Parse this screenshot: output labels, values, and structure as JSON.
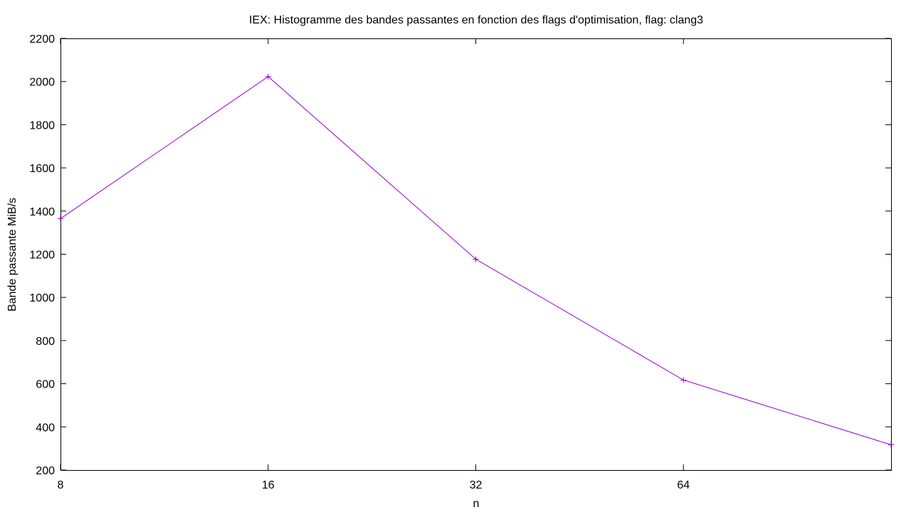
{
  "chart_data": {
    "type": "line",
    "title": "IEX: Histogramme des bandes passantes en fonction des flags d'optimisation, flag: clang3",
    "xlabel": "n",
    "ylabel": "Bande passante MiB/s",
    "x_scale": "log2",
    "x_ticks": [
      "8",
      "16",
      "32",
      "64"
    ],
    "xlim": [
      8,
      128
    ],
    "ylim": [
      200,
      2200
    ],
    "y_ticks": [
      "200",
      "400",
      "600",
      "800",
      "1000",
      "1200",
      "1400",
      "1600",
      "1800",
      "2000",
      "2200"
    ],
    "grid": false,
    "legend": "none",
    "series": [
      {
        "color": "#9400d3",
        "marker": "plus",
        "x": [
          8,
          16,
          32,
          64,
          128
        ],
        "y": [
          1365,
          2023,
          1177,
          617,
          317
        ]
      }
    ]
  }
}
